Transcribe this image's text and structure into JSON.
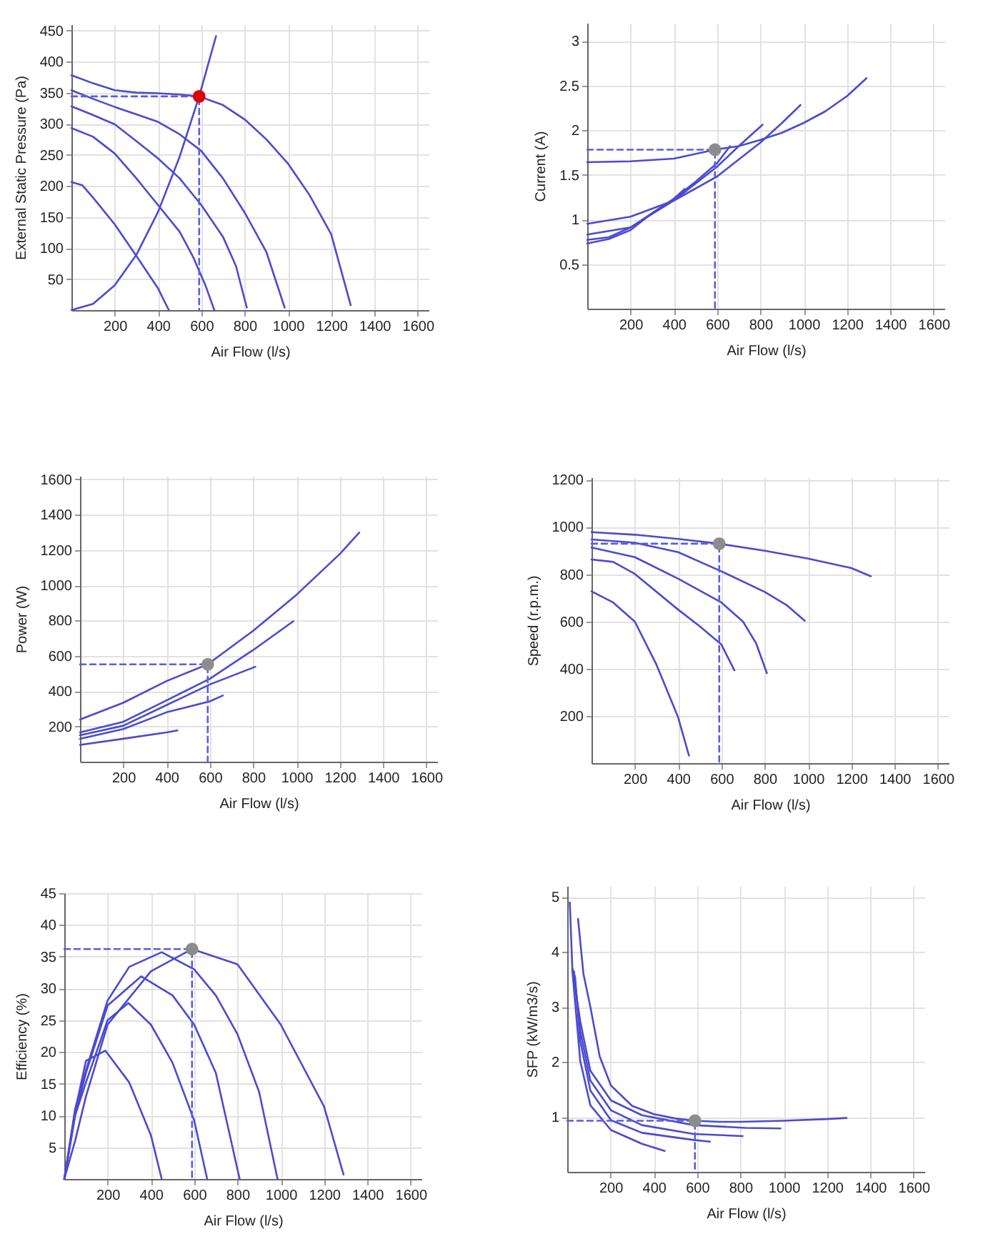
{
  "chart_data": [
    {
      "type": "line",
      "xlabel": "Air Flow (l/s)",
      "ylabel": "External Static Pressure (Pa)",
      "xlim": [
        0,
        1650
      ],
      "xticks": [
        200,
        400,
        600,
        800,
        1000,
        1200,
        1400,
        1600
      ],
      "ylim": [
        0,
        460
      ],
      "yticks": [
        50,
        100,
        150,
        200,
        250,
        300,
        350,
        400,
        450
      ],
      "grid": true,
      "series": [
        {
          "color": "#4b4bcf",
          "x": [
            0,
            100,
            200,
            300,
            400,
            500,
            590,
            700,
            800,
            900,
            1000,
            1100,
            1200,
            1290
          ],
          "values": [
            378,
            365,
            354,
            350,
            349,
            347,
            344,
            330,
            307,
            275,
            236,
            185,
            122,
            8
          ]
        },
        {
          "color": "#4b4bcf",
          "x": [
            0,
            100,
            200,
            300,
            400,
            500,
            600,
            700,
            800,
            900,
            985
          ],
          "values": [
            354,
            340,
            327,
            315,
            303,
            283,
            256,
            212,
            157,
            94,
            4
          ]
        },
        {
          "color": "#4b4bcf",
          "x": [
            0,
            100,
            200,
            300,
            400,
            500,
            600,
            700,
            760,
            810
          ],
          "values": [
            328,
            314,
            299,
            272,
            244,
            212,
            169,
            118,
            71,
            4
          ]
        },
        {
          "color": "#4b4bcf",
          "x": [
            0,
            100,
            200,
            300,
            400,
            500,
            560,
            620,
            660
          ],
          "values": [
            293,
            279,
            252,
            212,
            169,
            126,
            87,
            39,
            0
          ]
        },
        {
          "color": "#4b4bcf",
          "x": [
            0,
            50,
            100,
            200,
            300,
            400,
            450
          ],
          "values": [
            206,
            201,
            181,
            138,
            87,
            35,
            0
          ]
        },
        {
          "color": "#4b4bcf",
          "x": [
            0,
            100,
            200,
            300,
            400,
            500,
            590,
            668
          ],
          "values": [
            0,
            10,
            40,
            89,
            158,
            247,
            344,
            441
          ]
        },
        {
          "type": "line",
          "line_style": "dashed",
          "color": "#5c5ce0",
          "x": [
            0,
            590,
            590
          ],
          "values": [
            344,
            344,
            0
          ]
        },
        {
          "type": "scatter",
          "marker": "circle",
          "color": "#e00000",
          "x": [
            590
          ],
          "values": [
            344
          ]
        }
      ]
    },
    {
      "type": "line",
      "xlabel": "Air Flow (l/s)",
      "ylabel": "Current (A)",
      "xlim": [
        0,
        1650
      ],
      "xticks": [
        200,
        400,
        600,
        800,
        1000,
        1200,
        1400,
        1600
      ],
      "ylim": [
        0,
        3.2
      ],
      "yticks": [
        0.5,
        1,
        1.5,
        2,
        2.5,
        3
      ],
      "grid": true,
      "series": [
        {
          "color": "#4b4bcf",
          "x": [
            0,
            200,
            400,
            590,
            700,
            800,
            900,
            1000,
            1100,
            1200,
            1290
          ],
          "values": [
            1.64,
            1.65,
            1.68,
            1.78,
            1.82,
            1.89,
            1.97,
            2.08,
            2.21,
            2.38,
            2.58
          ]
        },
        {
          "color": "#4b4bcf",
          "x": [
            0,
            200,
            400,
            600,
            800,
            900,
            985
          ],
          "values": [
            0.95,
            1.03,
            1.21,
            1.48,
            1.86,
            2.08,
            2.28
          ]
        },
        {
          "color": "#4b4bcf",
          "x": [
            0,
            200,
            400,
            600,
            700,
            810
          ],
          "values": [
            0.83,
            0.91,
            1.21,
            1.59,
            1.82,
            2.06
          ]
        },
        {
          "color": "#4b4bcf",
          "x": [
            0,
            100,
            200,
            400,
            500,
            600,
            660
          ],
          "values": [
            0.77,
            0.8,
            0.91,
            1.23,
            1.42,
            1.63,
            1.82
          ]
        },
        {
          "color": "#4b4bcf",
          "x": [
            0,
            100,
            200,
            300,
            400,
            450
          ],
          "values": [
            0.73,
            0.78,
            0.88,
            1.07,
            1.23,
            1.34
          ]
        },
        {
          "type": "line",
          "line_style": "dashed",
          "color": "#5c5ce0",
          "x": [
            0,
            590,
            590
          ],
          "values": [
            1.78,
            1.78,
            0
          ]
        },
        {
          "type": "scatter",
          "marker": "circle",
          "color": "#8c8c8c",
          "x": [
            590
          ],
          "values": [
            1.78
          ]
        }
      ]
    },
    {
      "type": "line",
      "xlabel": "Air Flow (l/s)",
      "ylabel": "Power (W)",
      "xlim": [
        0,
        1650
      ],
      "xticks": [
        200,
        400,
        600,
        800,
        1000,
        1200,
        1400,
        1600
      ],
      "ylim": [
        0,
        1620
      ],
      "yticks": [
        200,
        400,
        600,
        800,
        1000,
        1200,
        1400,
        1600
      ],
      "grid": true,
      "series": [
        {
          "color": "#4b4bcf",
          "x": [
            0,
            200,
            400,
            590,
            800,
            1000,
            1200,
            1290
          ],
          "values": [
            239,
            334,
            457,
            552,
            742,
            946,
            1177,
            1299
          ]
        },
        {
          "color": "#4b4bcf",
          "x": [
            0,
            200,
            400,
            600,
            800,
            985
          ],
          "values": [
            166,
            226,
            348,
            470,
            633,
            796
          ]
        },
        {
          "color": "#4b4bcf",
          "x": [
            0,
            200,
            400,
            600,
            810
          ],
          "values": [
            150,
            204,
            321,
            438,
            538
          ]
        },
        {
          "color": "#4b4bcf",
          "x": [
            0,
            200,
            400,
            600,
            660
          ],
          "values": [
            130,
            185,
            280,
            342,
            375
          ]
        },
        {
          "color": "#4b4bcf",
          "x": [
            0,
            200,
            400,
            450
          ],
          "values": [
            95,
            130,
            166,
            177
          ]
        },
        {
          "type": "line",
          "line_style": "dashed",
          "color": "#5c5ce0",
          "x": [
            0,
            590,
            590
          ],
          "values": [
            552,
            552,
            0
          ]
        },
        {
          "type": "scatter",
          "marker": "circle",
          "color": "#8c8c8c",
          "x": [
            590
          ],
          "values": [
            552
          ]
        }
      ]
    },
    {
      "type": "line",
      "xlabel": "Air Flow (l/s)",
      "ylabel": "Speed (r.p.m.)",
      "xlim": [
        0,
        1650
      ],
      "xticks": [
        200,
        400,
        600,
        800,
        1000,
        1200,
        1400,
        1600
      ],
      "ylim": [
        0,
        1210
      ],
      "yticks": [
        200,
        400,
        600,
        800,
        1000,
        1200
      ],
      "grid": true,
      "series": [
        {
          "color": "#4b4bcf",
          "x": [
            0,
            200,
            400,
            590,
            800,
            1000,
            1200,
            1290
          ],
          "values": [
            978,
            967,
            949,
            929,
            899,
            866,
            826,
            791
          ]
        },
        {
          "color": "#4b4bcf",
          "x": [
            0,
            200,
            400,
            600,
            800,
            900,
            985
          ],
          "values": [
            947,
            933,
            893,
            812,
            725,
            670,
            603
          ]
        },
        {
          "color": "#4b4bcf",
          "x": [
            0,
            200,
            400,
            600,
            700,
            760,
            810
          ],
          "values": [
            913,
            872,
            781,
            680,
            599,
            508,
            381
          ]
        },
        {
          "color": "#4b4bcf",
          "x": [
            0,
            100,
            200,
            400,
            500,
            600,
            660
          ],
          "values": [
            862,
            852,
            801,
            650,
            579,
            502,
            393
          ]
        },
        {
          "color": "#4b4bcf",
          "x": [
            0,
            100,
            200,
            300,
            400,
            450
          ],
          "values": [
            727,
            680,
            599,
            417,
            194,
            32
          ]
        },
        {
          "type": "line",
          "line_style": "dashed",
          "color": "#5c5ce0",
          "x": [
            0,
            590,
            590
          ],
          "values": [
            929,
            929,
            0
          ]
        },
        {
          "type": "scatter",
          "marker": "circle",
          "color": "#8c8c8c",
          "x": [
            590
          ],
          "values": [
            929
          ]
        }
      ]
    },
    {
      "type": "line",
      "xlabel": "Air Flow (l/s)",
      "ylabel": "Efficiency (%)",
      "xlim": [
        0,
        1650
      ],
      "xticks": [
        200,
        400,
        600,
        800,
        1000,
        1200,
        1400,
        1600
      ],
      "ylim": [
        0,
        45
      ],
      "yticks": [
        5,
        10,
        15,
        20,
        25,
        30,
        35,
        40,
        45
      ],
      "grid": true,
      "series": [
        {
          "color": "#4b4bcf",
          "x": [
            0,
            50,
            100,
            200,
            400,
            590,
            800,
            1000,
            1200,
            1290
          ],
          "values": [
            0,
            6,
            13,
            24.3,
            32.7,
            36.2,
            33.8,
            24.3,
            11.4,
            0.7
          ]
        },
        {
          "color": "#4b4bcf",
          "x": [
            0,
            50,
            100,
            200,
            300,
            450,
            600,
            700,
            800,
            900,
            985
          ],
          "values": [
            0,
            11,
            17.1,
            28.1,
            33.4,
            35.7,
            33,
            28.9,
            22.8,
            13.7,
            0
          ]
        },
        {
          "color": "#4b4bcf",
          "x": [
            0,
            50,
            100,
            200,
            355,
            500,
            600,
            700,
            810
          ],
          "values": [
            0,
            10,
            16.7,
            27.3,
            31.9,
            28.9,
            24.3,
            16.7,
            0
          ]
        },
        {
          "color": "#4b4bcf",
          "x": [
            0,
            50,
            100,
            200,
            296,
            400,
            500,
            600,
            660
          ],
          "values": [
            0,
            10,
            15.2,
            25,
            27.7,
            24.3,
            18.3,
            9.2,
            0
          ]
        },
        {
          "color": "#4b4bcf",
          "x": [
            0,
            50,
            100,
            190,
            300,
            400,
            450
          ],
          "values": [
            0,
            10.7,
            18.6,
            20.2,
            15.2,
            6.9,
            0
          ]
        },
        {
          "type": "line",
          "line_style": "dashed",
          "color": "#5c5ce0",
          "x": [
            0,
            590,
            590
          ],
          "values": [
            36.2,
            36.2,
            0
          ]
        },
        {
          "type": "scatter",
          "marker": "circle",
          "color": "#8c8c8c",
          "x": [
            590
          ],
          "values": [
            36.2
          ]
        }
      ]
    },
    {
      "type": "line",
      "xlabel": "Air Flow (l/s)",
      "ylabel": "SFP (kW/m3/s)",
      "xlim": [
        0,
        1650
      ],
      "xticks": [
        200,
        400,
        600,
        800,
        1000,
        1200,
        1400,
        1600
      ],
      "ylim": [
        0,
        5.2
      ],
      "yticks": [
        1,
        2,
        3,
        4,
        5
      ],
      "grid": true,
      "series": [
        {
          "color": "#4b4bcf",
          "x": [
            50,
            75,
            107,
            150,
            202,
            300,
            400,
            500,
            590,
            700,
            800,
            1000,
            1200,
            1290
          ],
          "values": [
            4.6,
            3.6,
            3.0,
            2.1,
            1.57,
            1.2,
            1.05,
            0.97,
            0.93,
            0.91,
            0.91,
            0.93,
            0.96,
            0.98
          ]
        },
        {
          "color": "#4b4bcf",
          "x": [
            24,
            60,
            107,
            202,
            345,
            583,
            821,
            985
          ],
          "values": [
            3.7,
            2.74,
            1.84,
            1.3,
            1.03,
            0.85,
            0.8,
            0.79
          ]
        },
        {
          "color": "#4b4bcf",
          "x": [
            31,
            60,
            107,
            202,
            345,
            583,
            810
          ],
          "values": [
            3.65,
            2.56,
            1.66,
            1.12,
            0.85,
            0.69,
            0.65
          ]
        },
        {
          "color": "#4b4bcf",
          "x": [
            36,
            60,
            107,
            202,
            345,
            583,
            660
          ],
          "values": [
            3.56,
            2.38,
            1.48,
            0.94,
            0.71,
            0.58,
            0.55
          ]
        },
        {
          "color": "#4b4bcf",
          "x": [
            12,
            24,
            60,
            107,
            202,
            345,
            450
          ],
          "values": [
            4.9,
            3.65,
            2.02,
            1.21,
            0.76,
            0.51,
            0.38
          ]
        },
        {
          "type": "line",
          "line_style": "dashed",
          "color": "#5c5ce0",
          "x": [
            0,
            590,
            590
          ],
          "values": [
            0.93,
            0.93,
            0
          ]
        },
        {
          "type": "scatter",
          "marker": "circle",
          "color": "#8c8c8c",
          "x": [
            590
          ],
          "values": [
            0.93
          ]
        }
      ]
    }
  ]
}
